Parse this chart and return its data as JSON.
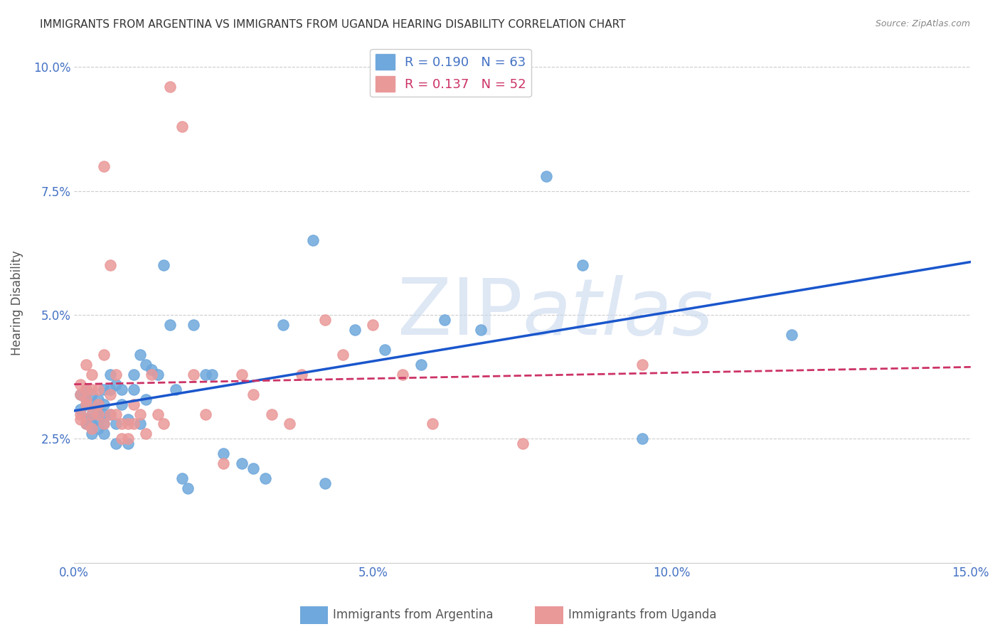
{
  "title": "IMMIGRANTS FROM ARGENTINA VS IMMIGRANTS FROM UGANDA HEARING DISABILITY CORRELATION CHART",
  "source": "Source: ZipAtlas.com",
  "xlabel": "",
  "ylabel": "Hearing Disability",
  "xlim": [
    0.0,
    0.15
  ],
  "ylim": [
    0.0,
    0.105
  ],
  "xticks": [
    0.0,
    0.05,
    0.1,
    0.15
  ],
  "xtick_labels": [
    "0.0%",
    "5.0%",
    "10.0%",
    "15.0%"
  ],
  "yticks": [
    0.025,
    0.05,
    0.075,
    0.1
  ],
  "ytick_labels": [
    "2.5%",
    "5.0%",
    "7.5%",
    "10.0%"
  ],
  "argentina_color": "#6fa8dc",
  "uganda_color": "#ea9999",
  "argentina_R": 0.19,
  "argentina_N": 63,
  "uganda_R": 0.137,
  "uganda_N": 52,
  "legend_label_1": "Immigrants from Argentina",
  "legend_label_2": "Immigrants from Uganda",
  "watermark_zip": "ZIP",
  "watermark_atlas": "atlas",
  "background_color": "#ffffff",
  "grid_color": "#cccccc",
  "argentina_x": [
    0.001,
    0.001,
    0.002,
    0.002,
    0.002,
    0.002,
    0.002,
    0.003,
    0.003,
    0.003,
    0.003,
    0.003,
    0.004,
    0.004,
    0.004,
    0.004,
    0.005,
    0.005,
    0.005,
    0.005,
    0.005,
    0.006,
    0.006,
    0.006,
    0.007,
    0.007,
    0.007,
    0.008,
    0.008,
    0.009,
    0.009,
    0.01,
    0.01,
    0.011,
    0.011,
    0.012,
    0.012,
    0.013,
    0.014,
    0.015,
    0.016,
    0.017,
    0.018,
    0.019,
    0.02,
    0.022,
    0.023,
    0.025,
    0.028,
    0.03,
    0.032,
    0.035,
    0.04,
    0.042,
    0.047,
    0.052,
    0.058,
    0.062,
    0.068,
    0.079,
    0.085,
    0.095,
    0.12
  ],
  "argentina_y": [
    0.031,
    0.034,
    0.029,
    0.032,
    0.033,
    0.035,
    0.028,
    0.03,
    0.032,
    0.034,
    0.028,
    0.026,
    0.031,
    0.033,
    0.029,
    0.027,
    0.03,
    0.032,
    0.028,
    0.026,
    0.035,
    0.035,
    0.038,
    0.03,
    0.036,
    0.028,
    0.024,
    0.032,
    0.035,
    0.029,
    0.024,
    0.038,
    0.035,
    0.042,
    0.028,
    0.04,
    0.033,
    0.039,
    0.038,
    0.06,
    0.048,
    0.035,
    0.017,
    0.015,
    0.048,
    0.038,
    0.038,
    0.022,
    0.02,
    0.019,
    0.017,
    0.048,
    0.065,
    0.016,
    0.047,
    0.043,
    0.04,
    0.049,
    0.047,
    0.078,
    0.06,
    0.025,
    0.046
  ],
  "uganda_x": [
    0.001,
    0.001,
    0.001,
    0.001,
    0.002,
    0.002,
    0.002,
    0.002,
    0.002,
    0.003,
    0.003,
    0.003,
    0.003,
    0.004,
    0.004,
    0.004,
    0.005,
    0.005,
    0.005,
    0.006,
    0.006,
    0.006,
    0.007,
    0.007,
    0.008,
    0.008,
    0.009,
    0.009,
    0.01,
    0.01,
    0.011,
    0.012,
    0.013,
    0.014,
    0.015,
    0.016,
    0.018,
    0.02,
    0.022,
    0.025,
    0.028,
    0.03,
    0.033,
    0.036,
    0.038,
    0.042,
    0.045,
    0.05,
    0.055,
    0.06,
    0.075,
    0.095
  ],
  "uganda_y": [
    0.034,
    0.036,
    0.03,
    0.029,
    0.04,
    0.035,
    0.032,
    0.028,
    0.033,
    0.038,
    0.035,
    0.03,
    0.027,
    0.035,
    0.032,
    0.03,
    0.08,
    0.042,
    0.028,
    0.034,
    0.03,
    0.06,
    0.038,
    0.03,
    0.025,
    0.028,
    0.028,
    0.025,
    0.032,
    0.028,
    0.03,
    0.026,
    0.038,
    0.03,
    0.028,
    0.096,
    0.088,
    0.038,
    0.03,
    0.02,
    0.038,
    0.034,
    0.03,
    0.028,
    0.038,
    0.049,
    0.042,
    0.048,
    0.038,
    0.028,
    0.024,
    0.04
  ]
}
